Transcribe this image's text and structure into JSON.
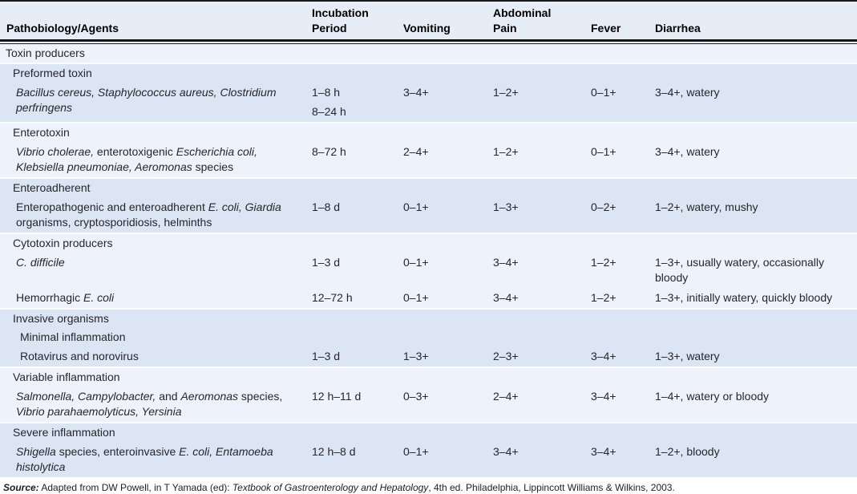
{
  "colors": {
    "band_light": "#eef2fa",
    "band_dark": "#dbe5f3",
    "header_bg": "#e6edf7",
    "rule": "#17171a",
    "text": "#26262b",
    "separator": "#fbfcfe"
  },
  "table": {
    "columns": [
      {
        "lines": [
          "Pathobiology/Agents"
        ]
      },
      {
        "lines": [
          "Incubation",
          "Period"
        ]
      },
      {
        "lines": [
          "Vomiting"
        ]
      },
      {
        "lines": [
          "Abdominal",
          "Pain"
        ]
      },
      {
        "lines": [
          "Fever"
        ]
      },
      {
        "lines": [
          "Diarrhea"
        ]
      }
    ],
    "groups": [
      {
        "shade": "light",
        "rows": [
          {
            "type": "category",
            "indent": 0,
            "agent": [
              {
                "t": "Toxin producers",
                "i": false
              }
            ]
          }
        ]
      },
      {
        "shade": "dark",
        "rows": [
          {
            "type": "category",
            "indent": 1,
            "agent": [
              {
                "t": "Preformed toxin",
                "i": false
              }
            ]
          },
          {
            "type": "data",
            "indent": 2,
            "agent": [
              {
                "t": "Bacillus cereus, Staphylococcus aureus, Clostridium perfringens",
                "i": true
              }
            ],
            "incubation": [
              "1–8 h",
              "8–24 h"
            ],
            "vomiting": "3–4+",
            "abdominal_pain": "1–2+",
            "fever": "0–1+",
            "diarrhea": "3–4+, watery"
          }
        ]
      },
      {
        "shade": "light",
        "rows": [
          {
            "type": "category",
            "indent": 1,
            "agent": [
              {
                "t": "Enterotoxin",
                "i": false
              }
            ]
          },
          {
            "type": "data",
            "indent": 2,
            "agent": [
              {
                "t": "Vibrio cholerae,",
                "i": true
              },
              {
                "t": " enterotoxigenic ",
                "i": false
              },
              {
                "t": "Escherichia coli, Klebsiella pneumoniae, Aeromonas",
                "i": true
              },
              {
                "t": " species",
                "i": false
              }
            ],
            "incubation": [
              "8–72 h"
            ],
            "vomiting": "2–4+",
            "abdominal_pain": "1–2+",
            "fever": "0–1+",
            "diarrhea": "3–4+, watery"
          }
        ]
      },
      {
        "shade": "dark",
        "rows": [
          {
            "type": "category",
            "indent": 1,
            "agent": [
              {
                "t": "Enteroadherent",
                "i": false
              }
            ]
          },
          {
            "type": "data",
            "indent": 2,
            "agent": [
              {
                "t": "Enteropathogenic and enteroadherent ",
                "i": false
              },
              {
                "t": "E. coli, Giardia",
                "i": true
              },
              {
                "t": " organisms, cryptosporidiosis, helminths",
                "i": false
              }
            ],
            "incubation": [
              "1–8 d"
            ],
            "vomiting": "0–1+",
            "abdominal_pain": "1–3+",
            "fever": "0–2+",
            "diarrhea": "1–2+, watery, mushy"
          }
        ]
      },
      {
        "shade": "light",
        "rows": [
          {
            "type": "category",
            "indent": 1,
            "agent": [
              {
                "t": "Cytotoxin producers",
                "i": false
              }
            ]
          },
          {
            "type": "data",
            "indent": 2,
            "agent": [
              {
                "t": "C. difficile",
                "i": true
              }
            ],
            "incubation": [
              "1–3 d"
            ],
            "vomiting": "0–1+",
            "abdominal_pain": "3–4+",
            "fever": "1–2+",
            "diarrhea": "1–3+, usually watery, occasionally bloody"
          },
          {
            "type": "data",
            "indent": 2,
            "agent": [
              {
                "t": "Hemorrhagic ",
                "i": false
              },
              {
                "t": "E. coli",
                "i": true
              }
            ],
            "incubation": [
              "12–72 h"
            ],
            "vomiting": "0–1+",
            "abdominal_pain": "3–4+",
            "fever": "1–2+",
            "diarrhea": "1–3+, initially watery, quickly bloody"
          }
        ]
      },
      {
        "shade": "dark",
        "rows": [
          {
            "type": "category",
            "indent": 1,
            "agent": [
              {
                "t": "Invasive organisms",
                "i": false
              }
            ]
          },
          {
            "type": "category",
            "indent": 3,
            "agent": [
              {
                "t": "Minimal inflammation",
                "i": false
              }
            ]
          },
          {
            "type": "data",
            "indent": 3,
            "agent": [
              {
                "t": "Rotavirus and norovirus",
                "i": false
              }
            ],
            "incubation": [
              "1–3 d"
            ],
            "vomiting": "1–3+",
            "abdominal_pain": "2–3+",
            "fever": "3–4+",
            "diarrhea": "1–3+, watery"
          }
        ]
      },
      {
        "shade": "light",
        "rows": [
          {
            "type": "category",
            "indent": 1,
            "agent": [
              {
                "t": "Variable inflammation",
                "i": false
              }
            ]
          },
          {
            "type": "data",
            "indent": 2,
            "agent": [
              {
                "t": "Salmonella, Campylobacter,",
                "i": true
              },
              {
                "t": " and ",
                "i": false
              },
              {
                "t": "Aeromonas",
                "i": true
              },
              {
                "t": " species, ",
                "i": false
              },
              {
                "t": "Vibrio parahaemolyticus, Yersinia",
                "i": true
              }
            ],
            "incubation": [
              "12 h–11 d"
            ],
            "vomiting": "0–3+",
            "abdominal_pain": "2–4+",
            "fever": "3–4+",
            "diarrhea": "1–4+, watery or bloody"
          }
        ]
      },
      {
        "shade": "dark",
        "rows": [
          {
            "type": "category",
            "indent": 1,
            "agent": [
              {
                "t": "Severe inflammation",
                "i": false
              }
            ]
          },
          {
            "type": "data",
            "indent": 2,
            "agent": [
              {
                "t": "Shigella",
                "i": true
              },
              {
                "t": " species, enteroinvasive ",
                "i": false
              },
              {
                "t": "E. coli, Entamoeba histolytica",
                "i": true
              }
            ],
            "incubation": [
              "12 h–8 d"
            ],
            "vomiting": "0–1+",
            "abdominal_pain": "3–4+",
            "fever": "3–4+",
            "diarrhea": "1–2+, bloody"
          }
        ]
      }
    ]
  },
  "source": {
    "segments": [
      {
        "t": "Source:",
        "b": true,
        "i": true
      },
      {
        "t": " Adapted from DW Powell, in T Yamada (ed): ",
        "b": false,
        "i": false
      },
      {
        "t": "Textbook of Gastroenterology and Hepatology",
        "b": false,
        "i": true
      },
      {
        "t": ", 4th ed. Philadelphia, Lippincott Williams & Wilkins, 2003.",
        "b": false,
        "i": false
      }
    ]
  }
}
